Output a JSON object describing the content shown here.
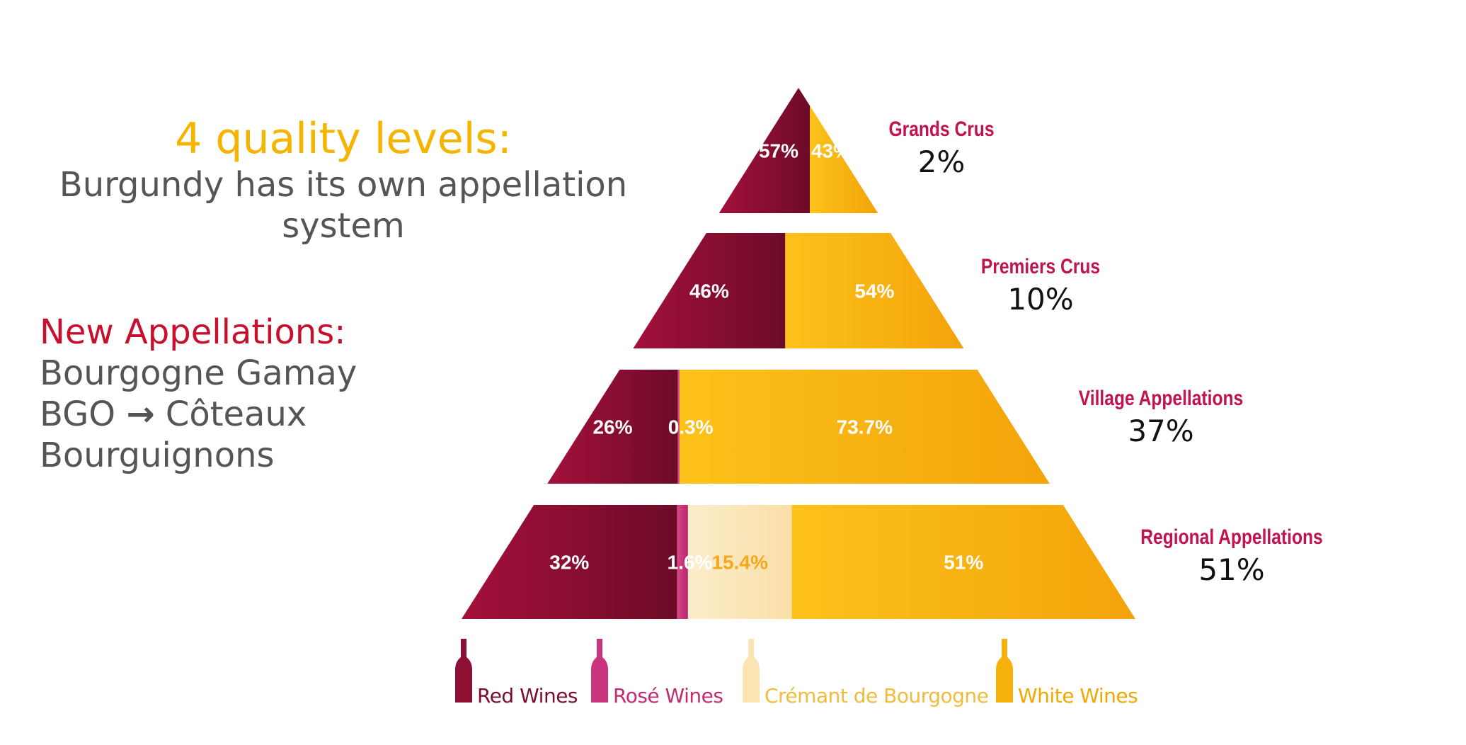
{
  "heading": {
    "title": "4 quality levels:",
    "subtitle": "Burgundy has its own appellation system"
  },
  "new_appellations": {
    "title": "New Appellations:",
    "line1": "Bourgogne Gamay",
    "line2_start": "BGO",
    "line2_arrow": "→",
    "line2_end": "Côteaux",
    "line3": "Bourguignons"
  },
  "colors": {
    "red": "#8e0f35",
    "rose": "#c8357c",
    "cremant": "#fbe3b2",
    "white": "#f6b10d",
    "level_label": "#c0134f"
  },
  "legend": [
    {
      "label": "Red Wines",
      "color": "#8e0f35",
      "text_color": "#7a0c2e"
    },
    {
      "label": "Rosé Wines",
      "color": "#c8357c",
      "text_color": "#c42a6e"
    },
    {
      "label": "Crémant de Bourgogne",
      "color": "#fbe3b2",
      "text_color": "#f3bb3c"
    },
    {
      "label": "White Wines",
      "color": "#f6b10d",
      "text_color": "#f0a800"
    }
  ],
  "chart_data": {
    "type": "pyramid",
    "levels": [
      {
        "name": "Grands Crus",
        "share": "2%",
        "share_value": 2,
        "segments": [
          {
            "category": "Red Wines",
            "label": "57%",
            "value": 57
          },
          {
            "category": "White Wines",
            "label": "43%",
            "value": 43
          }
        ]
      },
      {
        "name": "Premiers Crus",
        "share": "10%",
        "share_value": 10,
        "segments": [
          {
            "category": "Red Wines",
            "label": "46%",
            "value": 46
          },
          {
            "category": "White Wines",
            "label": "54%",
            "value": 54
          }
        ]
      },
      {
        "name": "Village  Appellations",
        "share": "37%",
        "share_value": 37,
        "segments": [
          {
            "category": "Red Wines",
            "label": "26%",
            "value": 26
          },
          {
            "category": "Rosé Wines",
            "label": "0.3%",
            "value": 0.3
          },
          {
            "category": "White Wines",
            "label": "73.7%",
            "value": 73.7
          }
        ]
      },
      {
        "name": "Regional  Appellations",
        "share": "51%",
        "share_value": 51,
        "segments": [
          {
            "category": "Red Wines",
            "label": "32%",
            "value": 32
          },
          {
            "category": "Rosé Wines",
            "label": "1.6%",
            "value": 1.6
          },
          {
            "category": "Crémant de Bourgogne",
            "label": "15.4%",
            "value": 15.4
          },
          {
            "category": "White Wines",
            "label": "51%",
            "value": 51
          }
        ]
      }
    ]
  }
}
